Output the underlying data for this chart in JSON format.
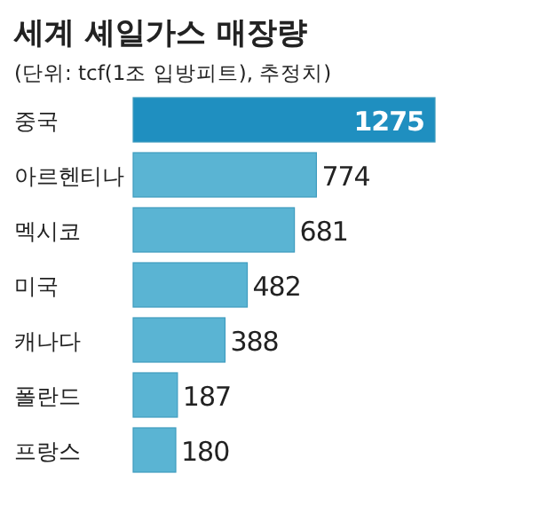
{
  "chart_data": {
    "type": "bar",
    "orientation": "horizontal",
    "title": "세계 셰일가스 매장량",
    "subtitle": "(단위: tcf(1조 입방피트), 추정치)",
    "categories": [
      "중국",
      "아르헨티나",
      "멕시코",
      "미국",
      "캐나다",
      "폴란드",
      "프랑스"
    ],
    "values": [
      1275,
      774,
      681,
      482,
      388,
      187,
      180
    ],
    "colors": [
      "#1f8fc0",
      "#5ab4d3",
      "#5ab4d3",
      "#5ab4d3",
      "#5ab4d3",
      "#5ab4d3",
      "#5ab4d3"
    ],
    "data_labels": true,
    "relative": false
  }
}
